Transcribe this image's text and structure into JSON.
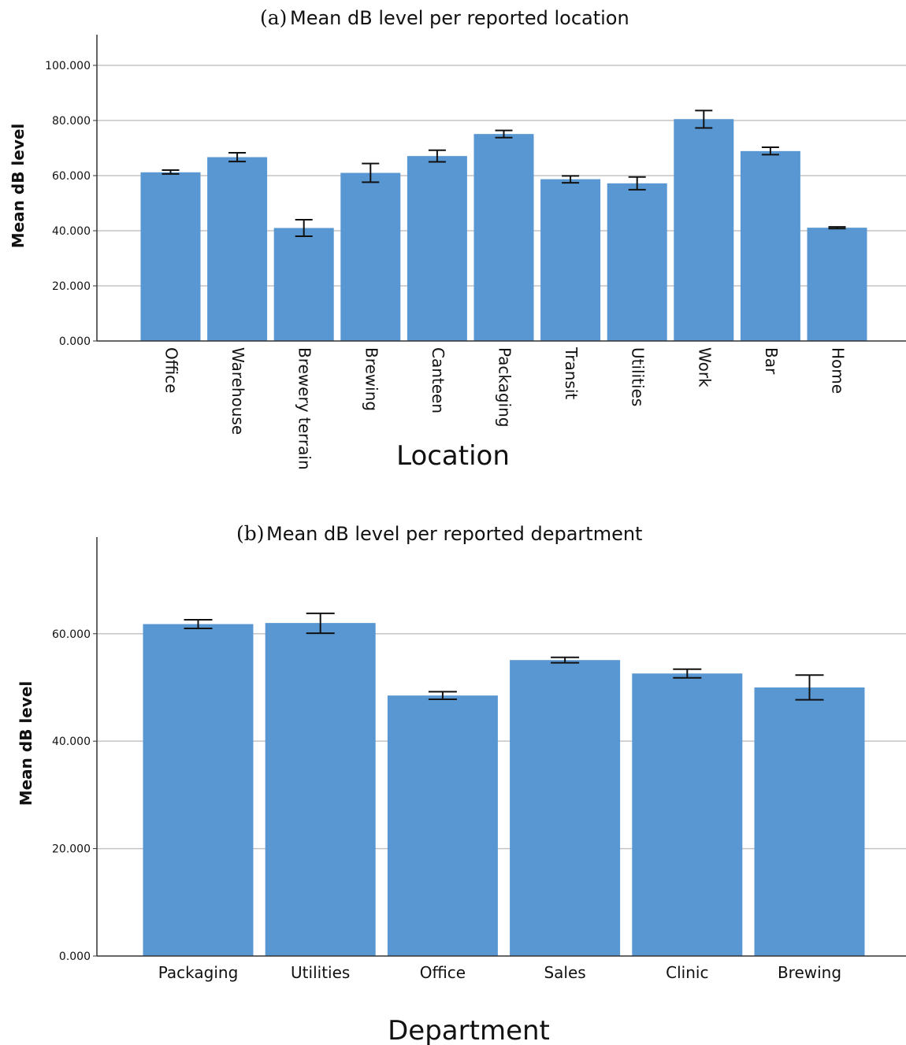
{
  "chart_data": [
    {
      "type": "bar",
      "panel": "(a)",
      "title": "Mean dB level per reported location",
      "xlabel": "Location",
      "ylabel": "Mean dB level",
      "ylim": [
        0,
        110
      ],
      "yticks": [
        "0.000",
        "20.000",
        "40.000",
        "60.000",
        "80.000",
        "100.000"
      ],
      "grid": true,
      "bar_color": "#5897d2",
      "categories": [
        "Office",
        "Warehouse",
        "Brewery terrain",
        "Brewing",
        "Canteen",
        "Packaging",
        "Transit",
        "Utilities",
        "Work",
        "Bar",
        "Home"
      ],
      "values": [
        61.2,
        66.7,
        41.0,
        61.0,
        67.1,
        75.1,
        58.7,
        57.2,
        80.5,
        68.9,
        41.1
      ],
      "error_low": [
        60.6,
        65.1,
        38.0,
        57.6,
        65.0,
        73.8,
        57.4,
        54.9,
        77.3,
        67.6,
        40.8
      ],
      "error_high": [
        62.0,
        68.3,
        44.0,
        64.4,
        69.2,
        76.4,
        59.9,
        59.5,
        83.6,
        70.3,
        41.4
      ]
    },
    {
      "type": "bar",
      "panel": "(b)",
      "title": "Mean dB level per reported department",
      "xlabel": "Department",
      "ylabel": "Mean dB level",
      "ylim": [
        0,
        78
      ],
      "yticks": [
        "0.000",
        "20.000",
        "40.000",
        "60.000"
      ],
      "grid": true,
      "bar_color": "#5897d2",
      "categories": [
        "Packaging",
        "Utilities",
        "Office",
        "Sales",
        "Clinic",
        "Brewing"
      ],
      "values": [
        61.8,
        62.0,
        48.5,
        55.1,
        52.6,
        50.0
      ],
      "error_low": [
        61.0,
        60.1,
        47.8,
        54.6,
        51.8,
        47.7
      ],
      "error_high": [
        62.6,
        63.8,
        49.2,
        55.6,
        53.4,
        52.3
      ]
    }
  ]
}
